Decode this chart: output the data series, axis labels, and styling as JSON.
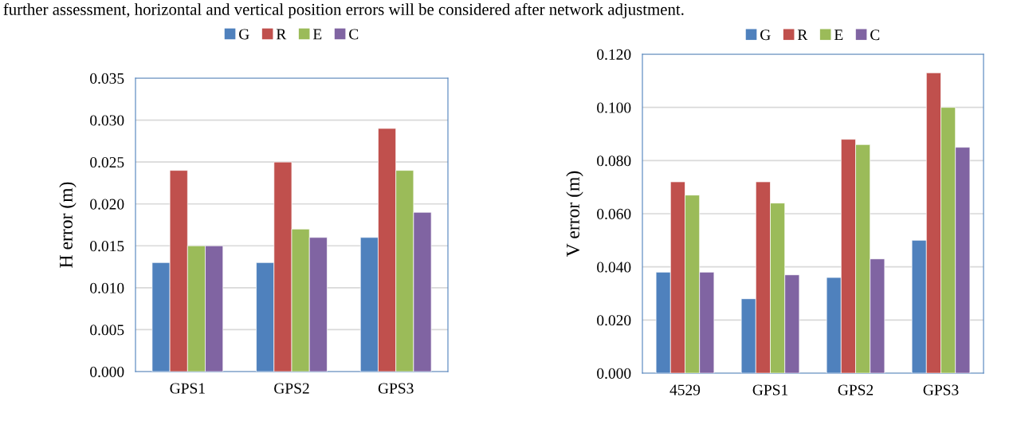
{
  "chart_data": [
    {
      "type": "bar",
      "ylabel": "H error (m)",
      "categories": [
        "GPS1",
        "GPS2",
        "GPS3"
      ],
      "annotations": [
        "further assessment, horizontal and vertical position errors will be considered after network adjustment."
      ],
      "series": [
        {
          "name": "G",
          "color": "#4f81bd",
          "values": [
            0.013,
            0.013,
            0.016
          ]
        },
        {
          "name": "R",
          "color": "#c0504d",
          "values": [
            0.024,
            0.025,
            0.029
          ]
        },
        {
          "name": "E",
          "color": "#9bbb59",
          "values": [
            0.015,
            0.017,
            0.024
          ]
        },
        {
          "name": "C",
          "color": "#8064a2",
          "values": [
            0.015,
            0.016,
            0.019
          ]
        }
      ],
      "ylim": [
        0,
        0.035
      ],
      "yticks": [
        {
          "value": 0,
          "label": "0.000"
        },
        {
          "value": 0.005,
          "label": "0.005"
        },
        {
          "value": 0.01,
          "label": "0.010"
        },
        {
          "value": 0.015,
          "label": "0.015"
        },
        {
          "value": 0.02,
          "label": "0.020"
        },
        {
          "value": 0.025,
          "label": "0.025"
        },
        {
          "value": 0.03,
          "label": "0.030"
        },
        {
          "value": 0.035,
          "label": "0.035"
        }
      ],
      "grid": "y",
      "legend": "top"
    },
    {
      "type": "bar",
      "ylabel": "V error (m)",
      "categories": [
        "4529",
        "GPS1",
        "GPS2",
        "GPS3"
      ],
      "series": [
        {
          "name": "G",
          "color": "#4f81bd",
          "values": [
            0.038,
            0.028,
            0.036,
            0.05
          ]
        },
        {
          "name": "R",
          "color": "#c0504d",
          "values": [
            0.072,
            0.072,
            0.088,
            0.113
          ]
        },
        {
          "name": "E",
          "color": "#9bbb59",
          "values": [
            0.067,
            0.064,
            0.086,
            0.1
          ]
        },
        {
          "name": "C",
          "color": "#8064a2",
          "values": [
            0.038,
            0.037,
            0.043,
            0.085
          ]
        }
      ],
      "ylim": [
        0,
        0.12
      ],
      "yticks": [
        {
          "value": 0,
          "label": "0.000"
        },
        {
          "value": 0.02,
          "label": "0.020"
        },
        {
          "value": 0.04,
          "label": "0.040"
        },
        {
          "value": 0.06,
          "label": "0.060"
        },
        {
          "value": 0.08,
          "label": "0.080"
        },
        {
          "value": 0.1,
          "label": "0.100"
        },
        {
          "value": 0.12,
          "label": "0.120"
        }
      ],
      "grid": "y",
      "legend": "top"
    }
  ]
}
